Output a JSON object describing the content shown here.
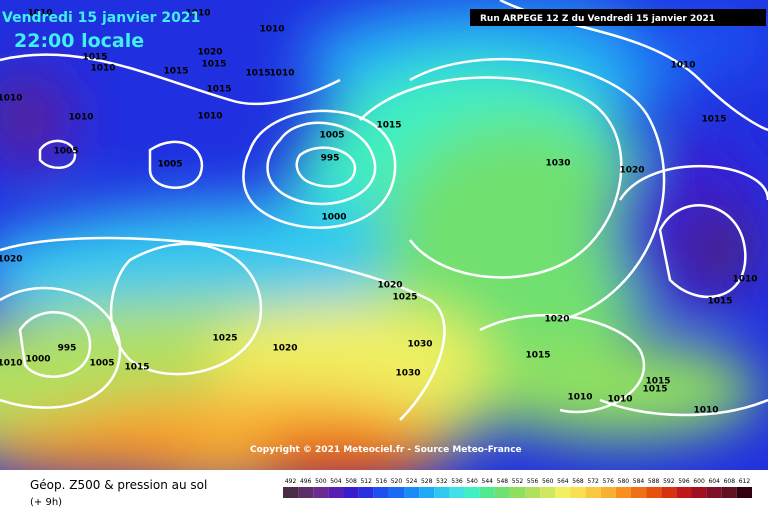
{
  "header": {
    "date": "Vendredi 15 janvier 2021",
    "time": "22:00 locale",
    "run": "Run ARPEGE 12 Z du Vendredi 15 janvier 2021"
  },
  "copyright": "Copyright © 2021 Meteociel.fr - Source Meteo-France",
  "legend": {
    "title": "Géop. Z500 & pression au sol",
    "lead": "(+ 9h)",
    "scale": [
      {
        "label": "492",
        "color": "#4b2c46"
      },
      {
        "label": "496",
        "color": "#5c2f6b"
      },
      {
        "label": "500",
        "color": "#6a2c91"
      },
      {
        "label": "504",
        "color": "#5a1fb0"
      },
      {
        "label": "508",
        "color": "#3a1ccf"
      },
      {
        "label": "512",
        "color": "#2a30e0"
      },
      {
        "label": "516",
        "color": "#1f4ff0"
      },
      {
        "label": "520",
        "color": "#1a6af5"
      },
      {
        "label": "524",
        "color": "#1a8cf5"
      },
      {
        "label": "528",
        "color": "#20aaf5"
      },
      {
        "label": "532",
        "color": "#30c8f0"
      },
      {
        "label": "536",
        "color": "#40e0e8"
      },
      {
        "label": "540",
        "color": "#40f0c0"
      },
      {
        "label": "544",
        "color": "#50e890"
      },
      {
        "label": "548",
        "color": "#70e070"
      },
      {
        "label": "552",
        "color": "#90e060"
      },
      {
        "label": "556",
        "color": "#b0e060"
      },
      {
        "label": "560",
        "color": "#d0e860"
      },
      {
        "label": "564",
        "color": "#f0f060"
      },
      {
        "label": "568",
        "color": "#f8e050"
      },
      {
        "label": "572",
        "color": "#f8c840"
      },
      {
        "label": "576",
        "color": "#f8b030"
      },
      {
        "label": "580",
        "color": "#f89020"
      },
      {
        "label": "584",
        "color": "#f07018"
      },
      {
        "label": "588",
        "color": "#e85010"
      },
      {
        "label": "592",
        "color": "#d83010"
      },
      {
        "label": "596",
        "color": "#c01818"
      },
      {
        "label": "600",
        "color": "#a01020"
      },
      {
        "label": "604",
        "color": "#801028"
      },
      {
        "label": "608",
        "color": "#601020"
      },
      {
        "label": "612",
        "color": "#300010"
      }
    ]
  },
  "isobars": [
    "1010",
    "1010",
    "1010",
    "1015",
    "1010",
    "1020",
    "1015",
    "1015",
    "1015",
    "1010",
    "1015",
    "1010",
    "1010",
    "1010",
    "1005",
    "1005",
    "1005",
    "995",
    "1015",
    "1000",
    "1030",
    "1020",
    "1010",
    "1015",
    "1020",
    "1020",
    "1025",
    "1025",
    "1020",
    "995",
    "1000",
    "1010",
    "1005",
    "1015",
    "1030",
    "1030",
    "1020",
    "1015",
    "1010",
    "1010",
    "1015",
    "1015",
    "1010",
    "1015",
    "1010"
  ]
}
